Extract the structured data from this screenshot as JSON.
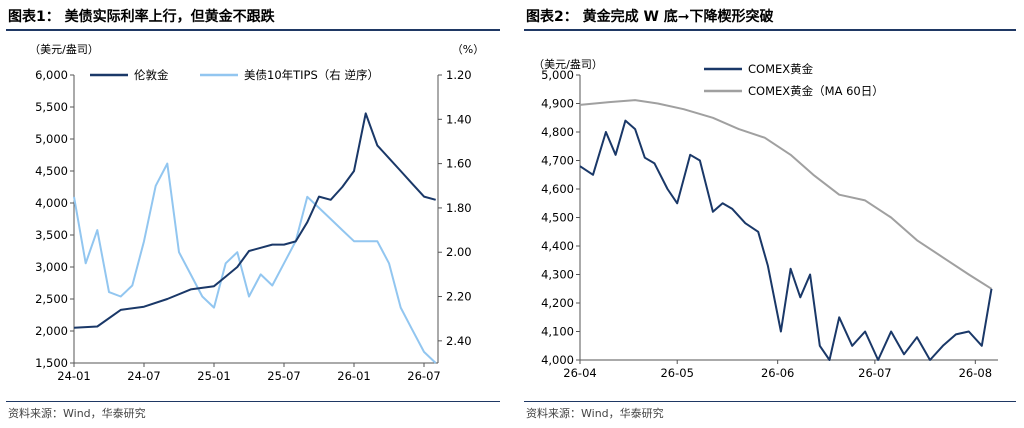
{
  "charts": [
    {
      "title": "图表1：   美债实际利率上行，但黄金不跟跌",
      "source": "资料来源：Wind，华泰研究"
    },
    {
      "title": "图表2：   黄金完成 W 底➞下降楔形突破",
      "source": "资料来源：Wind，华泰研究"
    }
  ],
  "colors": {
    "dark": "#1a3868",
    "light": "#92c6f0",
    "gray": "#a0a0a0",
    "rule": "#1f3864"
  },
  "chart_data": [
    {
      "type": "line",
      "left_unit": "（美元/盎司）",
      "right_unit": "（%）",
      "x_ticks": [
        "24-01",
        "24-07",
        "25-01",
        "25-07",
        "26-01",
        "26-07"
      ],
      "ylim_left": [
        1500,
        6000
      ],
      "y_ticks_left": [
        "1,500",
        "2,000",
        "2,500",
        "3,000",
        "3,500",
        "4,000",
        "4,500",
        "5,000",
        "5,500",
        "6,000"
      ],
      "ylim_right": [
        1.2,
        2.5
      ],
      "right_axis_inverted": true,
      "y_ticks_right": [
        "1.20",
        "1.40",
        "1.60",
        "1.80",
        "2.00",
        "2.20",
        "2.40"
      ],
      "series": [
        {
          "name": "伦敦金",
          "axis": "left",
          "x": [
            "24-01",
            "24-03",
            "24-05",
            "24-07",
            "24-09",
            "24-11",
            "25-01",
            "25-02",
            "25-03",
            "25-04",
            "25-05",
            "25-06",
            "25-07",
            "25-08",
            "25-09",
            "25-10",
            "25-11",
            "25-12",
            "26-01",
            "26-02",
            "26-03",
            "26-04",
            "26-05",
            "26-06",
            "26-07",
            "26-08"
          ],
          "values": [
            2050,
            2070,
            2330,
            2380,
            2500,
            2650,
            2700,
            2850,
            3000,
            3250,
            3300,
            3350,
            3350,
            3400,
            3700,
            4100,
            4050,
            4250,
            4500,
            5400,
            4900,
            4700,
            4500,
            4300,
            4100,
            4050
          ]
        },
        {
          "name": "美债10年TIPS（右 逆序）",
          "axis": "right",
          "x": [
            "24-01",
            "24-02",
            "24-03",
            "24-04",
            "24-05",
            "24-06",
            "24-07",
            "24-08",
            "24-09",
            "24-10",
            "24-11",
            "24-12",
            "25-01",
            "25-02",
            "25-03",
            "25-04",
            "25-05",
            "25-06",
            "25-07",
            "25-08",
            "25-09",
            "25-10",
            "25-11",
            "25-12",
            "26-01",
            "26-02",
            "26-03",
            "26-04",
            "26-05",
            "26-06",
            "26-07",
            "26-08"
          ],
          "values": [
            1.75,
            2.05,
            1.9,
            2.18,
            2.2,
            2.15,
            1.95,
            1.7,
            1.6,
            2.0,
            2.1,
            2.2,
            2.25,
            2.05,
            2.0,
            2.2,
            2.1,
            2.15,
            2.05,
            1.95,
            1.75,
            1.8,
            1.85,
            1.9,
            1.95,
            1.95,
            1.95,
            2.05,
            2.25,
            2.35,
            2.45,
            2.5
          ]
        }
      ]
    },
    {
      "type": "line",
      "left_unit": "（美元/盎司）",
      "x_ticks": [
        "26-04",
        "26-05",
        "26-06",
        "26-07",
        "26-08"
      ],
      "ylim": [
        4000,
        5000
      ],
      "y_ticks": [
        "4,000",
        "4,100",
        "4,200",
        "4,300",
        "4,400",
        "4,500",
        "4,600",
        "4,700",
        "4,800",
        "4,900",
        "5,000"
      ],
      "series": [
        {
          "name": "COMEX黄金",
          "x": [
            "26-04-01",
            "26-04-05",
            "26-04-09",
            "26-04-12",
            "26-04-15",
            "26-04-18",
            "26-04-21",
            "26-04-24",
            "26-04-28",
            "26-05-01",
            "26-05-05",
            "26-05-08",
            "26-05-12",
            "26-05-15",
            "26-05-18",
            "26-05-22",
            "26-05-26",
            "26-05-29",
            "26-06-02",
            "26-06-05",
            "26-06-08",
            "26-06-11",
            "26-06-14",
            "26-06-17",
            "26-06-20",
            "26-06-24",
            "26-06-28",
            "26-07-02",
            "26-07-06",
            "26-07-10",
            "26-07-14",
            "26-07-18",
            "26-07-22",
            "26-07-26",
            "26-07-30",
            "26-08-03",
            "26-08-06"
          ],
          "values": [
            4680,
            4650,
            4800,
            4720,
            4840,
            4810,
            4710,
            4690,
            4600,
            4550,
            4720,
            4700,
            4520,
            4550,
            4530,
            4480,
            4450,
            4330,
            4100,
            4320,
            4220,
            4300,
            4050,
            4000,
            4150,
            4050,
            4100,
            4000,
            4100,
            4020,
            4080,
            4000,
            4050,
            4090,
            4100,
            4050,
            4250
          ]
        },
        {
          "name": "COMEX黄金（MA 60日）",
          "x": [
            "26-04-01",
            "26-04-10",
            "26-04-18",
            "26-04-25",
            "26-05-03",
            "26-05-12",
            "26-05-20",
            "26-05-28",
            "26-06-05",
            "26-06-12",
            "26-06-20",
            "26-06-28",
            "26-07-06",
            "26-07-14",
            "26-07-22",
            "26-07-30",
            "26-08-06"
          ],
          "values": [
            4895,
            4905,
            4912,
            4900,
            4880,
            4850,
            4810,
            4780,
            4720,
            4650,
            4580,
            4560,
            4500,
            4420,
            4360,
            4300,
            4250
          ]
        }
      ]
    }
  ]
}
